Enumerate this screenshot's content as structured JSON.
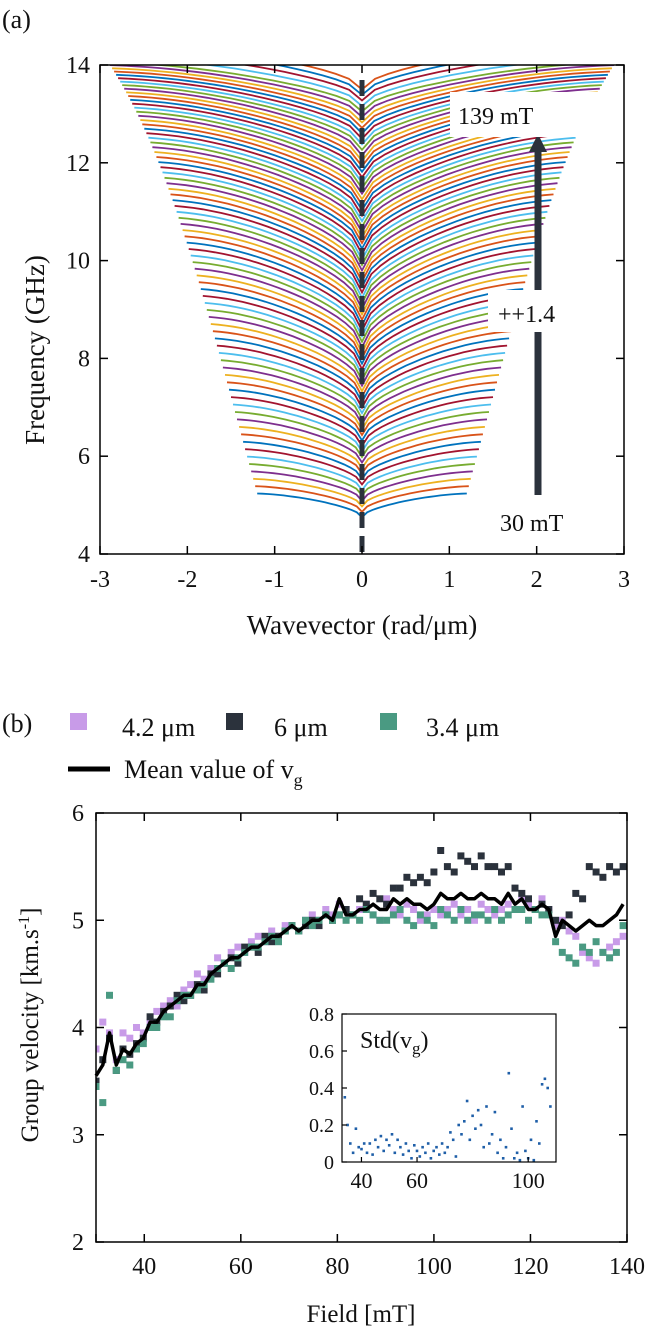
{
  "panel_a": {
    "label": "(a)",
    "xlabel": "Wavevector (rad/μm)",
    "ylabel": "Frequency (GHz)",
    "xlim": [
      -3,
      3
    ],
    "ylim": [
      4,
      14
    ],
    "xticks": [
      "-3",
      "-2",
      "-1",
      "0",
      "1",
      "2",
      "3"
    ],
    "yticks": [
      "4",
      "6",
      "8",
      "10",
      "12",
      "14"
    ],
    "annotations": {
      "top": "139 mT",
      "middle": "++1.4",
      "bottom": "30 mT"
    },
    "palette": [
      "#0072BD",
      "#D95319",
      "#EDB120",
      "#7E2F8E",
      "#77AC30",
      "#4DBEEE",
      "#A2142F"
    ]
  },
  "panel_b": {
    "label": "(b)",
    "xlabel": "Field [mT]",
    "ylabel": "Group velocity [km.s",
    "ylabel_sup": "-1",
    "ylabel_end": "]",
    "xlim": [
      30,
      140
    ],
    "ylim": [
      2,
      6
    ],
    "xticks": [
      "40",
      "60",
      "80",
      "100",
      "120",
      "140"
    ],
    "yticks": [
      "2",
      "3",
      "4",
      "5",
      "6"
    ],
    "legend": {
      "s1": "4.2 μm",
      "s2": "6 μm",
      "s3": "3.4 μm",
      "mean_prefix": "Mean value of v",
      "mean_sub": "g"
    },
    "inset": {
      "title_prefix": "Std(v",
      "title_sub": "g",
      "title_suffix": ")",
      "xticks": [
        "40",
        "60",
        "100"
      ],
      "yticks": [
        "0",
        "0.2",
        "0.4",
        "0.6",
        "0.8"
      ],
      "xlim": [
        33,
        110
      ],
      "ylim": [
        0,
        0.8
      ]
    }
  },
  "colors": {
    "series_42um": "#C89BE8",
    "series_6um": "#2B323C",
    "series_34um": "#4A9A82",
    "mean_line": "#000000",
    "inset_points": "#1F5FA8",
    "dashed_axis": "#2B323C",
    "arrow": "#2B323C"
  },
  "chart_data": [
    {
      "type": "line",
      "title": "",
      "xlabel": "Wavevector (rad/μm)",
      "ylabel": "Frequency (GHz)",
      "xlim": [
        -3,
        3
      ],
      "ylim": [
        4,
        14
      ],
      "grid": false,
      "field_range_mT": [
        30,
        139
      ],
      "field_step_mT": 1.4,
      "curve_count": 79,
      "curves_min": {
        "field_mT": 30,
        "f_at_k0_GHz": 4.75,
        "k_range": [
          -1.2,
          1.2
        ],
        "f_at_kmax_GHz": 5.4
      },
      "curves_max": {
        "field_mT": 139,
        "f_at_k0_GHz": 13.5,
        "k_range": [
          -3,
          3
        ],
        "f_at_kmax_GHz": 13.75
      }
    },
    {
      "type": "scatter",
      "title": "",
      "xlabel": "Field [mT]",
      "ylabel": "Group velocity [km.s-1]",
      "xlim": [
        30,
        140
      ],
      "ylim": [
        2,
        6
      ],
      "legend": "top",
      "x": [
        30,
        31.4,
        32.8,
        34.2,
        35.6,
        37,
        38.4,
        39.8,
        41.2,
        42.6,
        44,
        45.4,
        46.8,
        48.2,
        49.6,
        51,
        52.4,
        53.8,
        55.2,
        56.6,
        58,
        59.4,
        60.8,
        62.2,
        63.6,
        65,
        66.4,
        67.8,
        69.2,
        70.6,
        72,
        73.4,
        74.8,
        76.2,
        77.6,
        79,
        80.4,
        81.8,
        83.2,
        84.6,
        86,
        87.4,
        88.8,
        90.2,
        91.6,
        93,
        94.4,
        95.8,
        97.2,
        98.6,
        100,
        101.4,
        102.8,
        104.2,
        105.6,
        107,
        108.4,
        109.8,
        111.2,
        112.6,
        114,
        115.4,
        116.8,
        118.2,
        119.6,
        121,
        122.4,
        123.8,
        125.2,
        126.6,
        128,
        129.4,
        130.8,
        132.2,
        133.6,
        135,
        136.4,
        137.8,
        139.2
      ],
      "series": [
        {
          "name": "4.2 μm",
          "values": [
            3.8,
            4.05,
            3.95,
            3.7,
            3.95,
            3.9,
            4.0,
            3.95,
            4.05,
            4.15,
            4.2,
            4.25,
            4.2,
            4.35,
            4.4,
            4.5,
            4.45,
            4.55,
            4.65,
            4.6,
            4.7,
            4.75,
            4.7,
            4.8,
            4.85,
            4.8,
            4.9,
            4.85,
            4.95,
            4.95,
            4.9,
            5.0,
            5.05,
            5.0,
            5.1,
            5.05,
            5.15,
            5.1,
            5.05,
            5.1,
            5.15,
            5.05,
            5.0,
            5.2,
            5.1,
            5.05,
            5.15,
            5.1,
            5.0,
            5.05,
            5.1,
            5.05,
            5.1,
            5.15,
            5.05,
            5.1,
            5.0,
            5.15,
            5.1,
            5.05,
            5.1,
            5.15,
            5.1,
            5.2,
            5.15,
            5.1,
            5.2,
            5.1,
            4.95,
            5.0,
            4.9,
            4.85,
            4.7,
            4.65,
            4.6,
            4.7,
            4.75,
            4.8,
            4.85
          ]
        },
        {
          "name": "6 μm",
          "values": [
            3.5,
            3.7,
            3.9,
            3.6,
            3.8,
            3.75,
            3.85,
            3.9,
            4.1,
            4.05,
            4.15,
            4.2,
            4.3,
            4.25,
            4.3,
            4.4,
            4.35,
            4.5,
            4.5,
            4.6,
            4.65,
            4.6,
            4.75,
            4.75,
            4.7,
            4.85,
            4.8,
            4.85,
            4.9,
            4.95,
            4.9,
            4.95,
            5.0,
            4.95,
            5.05,
            5.0,
            5.05,
            5.1,
            5.05,
            5.2,
            5.15,
            5.25,
            5.2,
            5.15,
            5.3,
            5.3,
            5.4,
            5.35,
            5.4,
            5.35,
            5.45,
            5.65,
            5.5,
            5.45,
            5.6,
            5.55,
            5.5,
            5.6,
            5.5,
            5.5,
            5.45,
            5.5,
            5.3,
            5.25,
            5.2,
            5.1,
            5.15,
            5.1,
            5.0,
            4.95,
            5.05,
            5.25,
            5.2,
            5.5,
            5.45,
            5.4,
            5.5,
            5.45,
            5.5
          ]
        },
        {
          "name": "3.4 μm",
          "values": [
            3.45,
            3.3,
            4.3,
            3.6,
            3.7,
            3.65,
            3.8,
            3.85,
            4.0,
            4.0,
            4.1,
            4.1,
            4.25,
            4.3,
            4.3,
            4.35,
            4.4,
            4.45,
            4.55,
            4.6,
            4.55,
            4.65,
            4.7,
            4.75,
            4.75,
            4.8,
            4.85,
            4.8,
            4.9,
            4.95,
            4.9,
            5.0,
            4.95,
            5.0,
            5.05,
            5.0,
            5.05,
            5.0,
            5.05,
            5.0,
            5.1,
            5.05,
            5.0,
            5.0,
            5.05,
            5.1,
            5.0,
            4.95,
            5.05,
            5.0,
            4.95,
            5.1,
            5.05,
            5.0,
            5.1,
            5.0,
            5.05,
            5.05,
            5.0,
            5.1,
            5.0,
            5.05,
            5.1,
            5.1,
            5.0,
            5.1,
            5.05,
            5.05,
            4.8,
            4.7,
            4.65,
            4.6,
            4.75,
            4.7,
            4.8,
            4.7,
            4.65,
            4.7,
            4.95
          ]
        },
        {
          "name": "Mean value of vg",
          "values": [
            3.55,
            3.65,
            3.95,
            3.65,
            3.8,
            3.75,
            3.85,
            3.9,
            4.05,
            4.05,
            4.15,
            4.2,
            4.25,
            4.3,
            4.3,
            4.4,
            4.4,
            4.5,
            4.55,
            4.6,
            4.65,
            4.65,
            4.7,
            4.75,
            4.75,
            4.8,
            4.85,
            4.85,
            4.9,
            4.95,
            4.9,
            4.95,
            5.0,
            5.0,
            5.05,
            5.0,
            5.2,
            5.05,
            5.05,
            5.1,
            5.1,
            5.15,
            5.1,
            5.1,
            5.2,
            5.15,
            5.2,
            5.15,
            5.15,
            5.1,
            5.15,
            5.25,
            5.2,
            5.2,
            5.25,
            5.2,
            5.2,
            5.25,
            5.2,
            5.2,
            5.15,
            5.25,
            5.15,
            5.2,
            5.1,
            5.1,
            5.15,
            5.1,
            4.85,
            5.0,
            4.95,
            4.9,
            4.95,
            5.0,
            4.95,
            4.95,
            5.0,
            5.05,
            5.15
          ]
        }
      ]
    },
    {
      "type": "scatter",
      "title": "Std(vg)",
      "xlim": [
        33,
        110
      ],
      "ylim": [
        0,
        0.8
      ],
      "x": [
        34,
        35,
        36,
        37,
        38,
        39,
        40,
        41,
        42,
        43,
        44,
        45,
        46,
        47,
        48,
        49,
        50,
        51,
        52,
        53,
        54,
        55,
        56,
        57,
        58,
        59,
        60,
        61,
        62,
        63,
        64,
        65,
        66,
        67,
        68,
        69,
        70,
        71,
        72,
        73,
        74,
        75,
        76,
        77,
        78,
        79,
        80,
        81,
        82,
        83,
        84,
        85,
        86,
        87,
        88,
        89,
        90,
        91,
        92,
        93,
        94,
        95,
        96,
        97,
        98,
        99,
        100,
        101,
        102,
        103,
        104,
        105,
        106,
        107,
        108
      ],
      "y": [
        0.35,
        0.2,
        0.1,
        0.05,
        0.18,
        0.08,
        0.07,
        0.1,
        0.05,
        0.1,
        0.04,
        0.12,
        0.08,
        0.14,
        0.06,
        0.12,
        0.09,
        0.15,
        0.05,
        0.12,
        0.08,
        0.04,
        0.1,
        0.06,
        0.02,
        0.09,
        0.06,
        0.03,
        0.08,
        0.05,
        0.1,
        0.02,
        0.06,
        0.08,
        0.04,
        0.1,
        0.05,
        0.08,
        0.16,
        0.12,
        0.03,
        0.2,
        0.15,
        0.22,
        0.33,
        0.12,
        0.25,
        0.18,
        0.28,
        0.2,
        0.08,
        0.3,
        0.1,
        0.15,
        0.27,
        0.05,
        0.12,
        0.02,
        0.08,
        0.48,
        0.18,
        0.02,
        0.05,
        0.01,
        0.3,
        0.06,
        0.02,
        0.12,
        0.01,
        0.22,
        0.1,
        0.42,
        0.45,
        0.4,
        0.3
      ]
    }
  ]
}
